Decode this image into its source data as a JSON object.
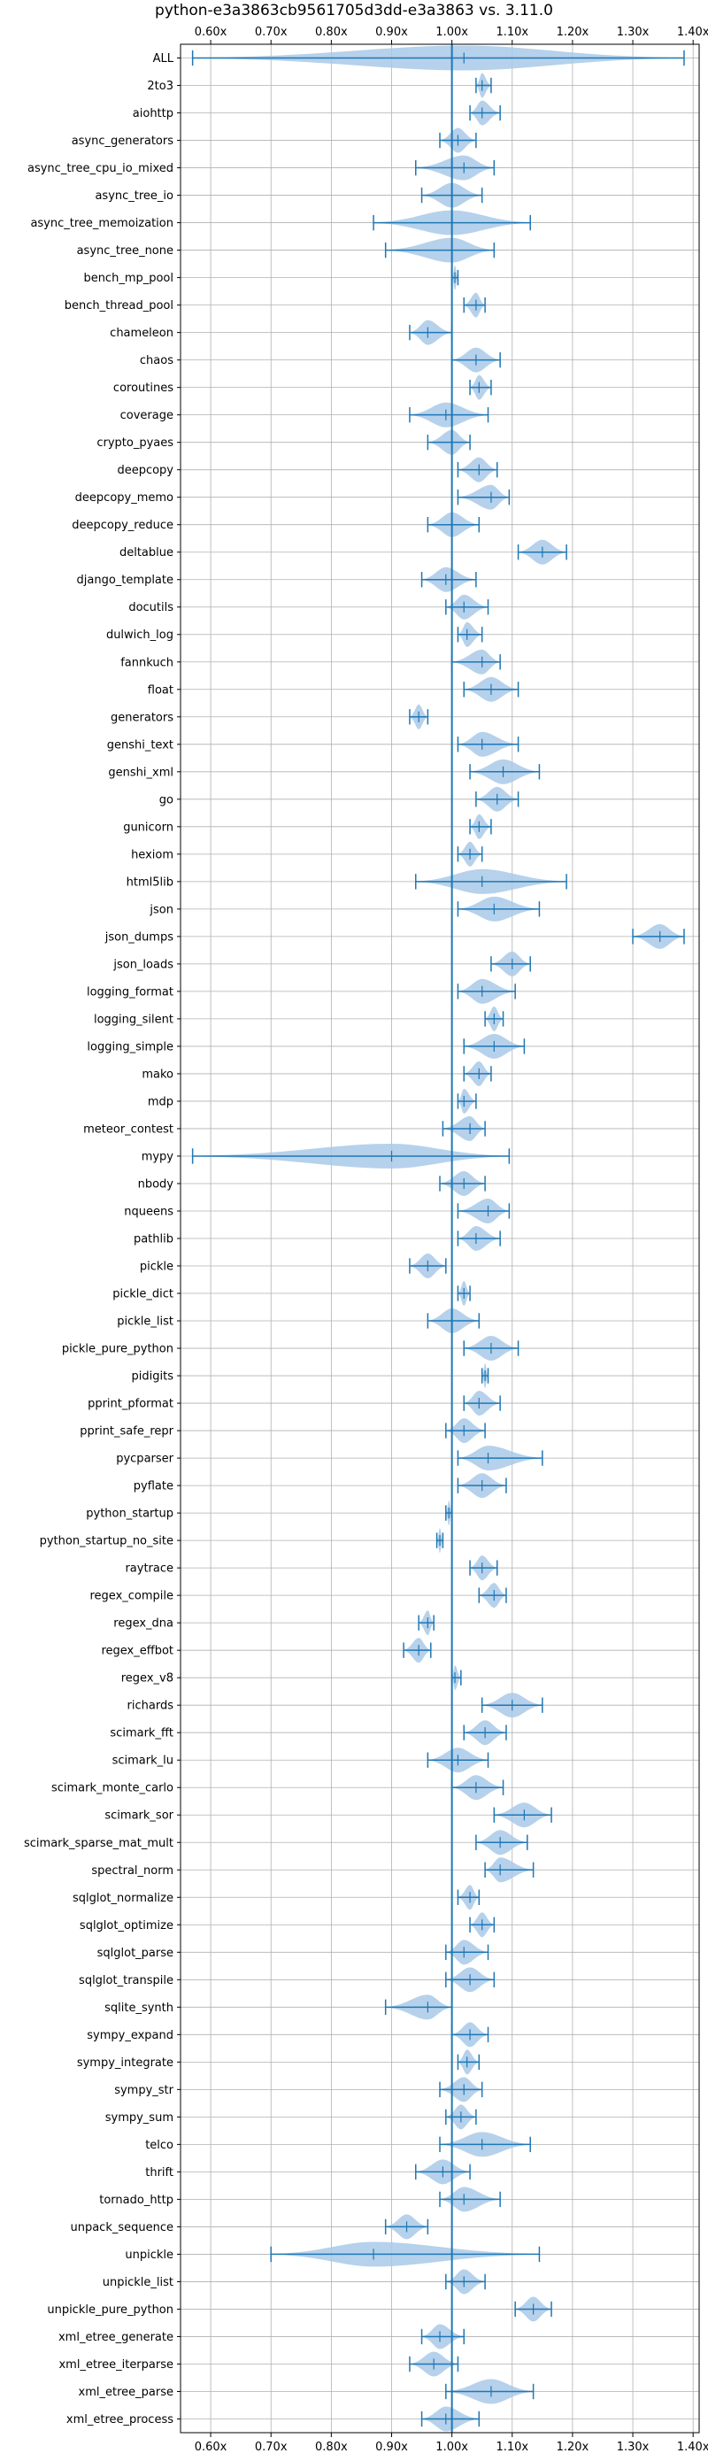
{
  "chart_data": {
    "type": "violin",
    "title": "python-e3a3863cb9561705d3dd-e3a3863 vs. 3.11.0",
    "xlim": [
      0.55,
      1.41
    ],
    "x_ticks": [
      0.6,
      0.7,
      0.8,
      0.9,
      1.0,
      1.1,
      1.2,
      1.3,
      1.4
    ],
    "x_tick_labels": [
      "0.60x",
      "0.70x",
      "0.80x",
      "0.90x",
      "1.00x",
      "1.10x",
      "1.20x",
      "1.30x",
      "1.40x"
    ],
    "x_axis_position": "top-and-bottom",
    "reference_line": 1.0,
    "grid": true,
    "benchmarks": [
      {
        "name": "ALL",
        "min": 0.57,
        "max": 1.385,
        "median": 1.02
      },
      {
        "name": "2to3",
        "min": 1.04,
        "max": 1.065,
        "median": 1.05
      },
      {
        "name": "aiohttp",
        "min": 1.03,
        "max": 1.08,
        "median": 1.05
      },
      {
        "name": "async_generators",
        "min": 0.98,
        "max": 1.04,
        "median": 1.01
      },
      {
        "name": "async_tree_cpu_io_mixed",
        "min": 0.94,
        "max": 1.07,
        "median": 1.02
      },
      {
        "name": "async_tree_io",
        "min": 0.95,
        "max": 1.05,
        "median": 1.0
      },
      {
        "name": "async_tree_memoization",
        "min": 0.87,
        "max": 1.13,
        "median": 1.0
      },
      {
        "name": "async_tree_none",
        "min": 0.89,
        "max": 1.07,
        "median": 1.0
      },
      {
        "name": "bench_mp_pool",
        "min": 1.0,
        "max": 1.01,
        "median": 1.005
      },
      {
        "name": "bench_thread_pool",
        "min": 1.02,
        "max": 1.055,
        "median": 1.04
      },
      {
        "name": "chameleon",
        "min": 0.93,
        "max": 1.0,
        "median": 0.96
      },
      {
        "name": "chaos",
        "min": 1.0,
        "max": 1.08,
        "median": 1.04
      },
      {
        "name": "coroutines",
        "min": 1.03,
        "max": 1.065,
        "median": 1.045
      },
      {
        "name": "coverage",
        "min": 0.93,
        "max": 1.06,
        "median": 0.99
      },
      {
        "name": "crypto_pyaes",
        "min": 0.96,
        "max": 1.03,
        "median": 1.0
      },
      {
        "name": "deepcopy",
        "min": 1.01,
        "max": 1.075,
        "median": 1.045
      },
      {
        "name": "deepcopy_memo",
        "min": 1.01,
        "max": 1.095,
        "median": 1.065
      },
      {
        "name": "deepcopy_reduce",
        "min": 0.96,
        "max": 1.045,
        "median": 1.0
      },
      {
        "name": "deltablue",
        "min": 1.11,
        "max": 1.19,
        "median": 1.15
      },
      {
        "name": "django_template",
        "min": 0.95,
        "max": 1.04,
        "median": 0.99
      },
      {
        "name": "docutils",
        "min": 0.99,
        "max": 1.06,
        "median": 1.02
      },
      {
        "name": "dulwich_log",
        "min": 1.01,
        "max": 1.05,
        "median": 1.025
      },
      {
        "name": "fannkuch",
        "min": 1.0,
        "max": 1.08,
        "median": 1.05
      },
      {
        "name": "float",
        "min": 1.02,
        "max": 1.11,
        "median": 1.065
      },
      {
        "name": "generators",
        "min": 0.93,
        "max": 0.96,
        "median": 0.945
      },
      {
        "name": "genshi_text",
        "min": 1.01,
        "max": 1.11,
        "median": 1.05
      },
      {
        "name": "genshi_xml",
        "min": 1.03,
        "max": 1.145,
        "median": 1.085
      },
      {
        "name": "go",
        "min": 1.04,
        "max": 1.11,
        "median": 1.075
      },
      {
        "name": "gunicorn",
        "min": 1.03,
        "max": 1.065,
        "median": 1.045
      },
      {
        "name": "hexiom",
        "min": 1.01,
        "max": 1.05,
        "median": 1.03
      },
      {
        "name": "html5lib",
        "min": 0.94,
        "max": 1.19,
        "median": 1.05
      },
      {
        "name": "json",
        "min": 1.01,
        "max": 1.145,
        "median": 1.07
      },
      {
        "name": "json_dumps",
        "min": 1.3,
        "max": 1.385,
        "median": 1.345
      },
      {
        "name": "json_loads",
        "min": 1.065,
        "max": 1.13,
        "median": 1.1
      },
      {
        "name": "logging_format",
        "min": 1.01,
        "max": 1.105,
        "median": 1.05
      },
      {
        "name": "logging_silent",
        "min": 1.055,
        "max": 1.085,
        "median": 1.07
      },
      {
        "name": "logging_simple",
        "min": 1.02,
        "max": 1.12,
        "median": 1.07
      },
      {
        "name": "mako",
        "min": 1.02,
        "max": 1.065,
        "median": 1.045
      },
      {
        "name": "mdp",
        "min": 1.01,
        "max": 1.04,
        "median": 1.02
      },
      {
        "name": "meteor_contest",
        "min": 0.985,
        "max": 1.055,
        "median": 1.03
      },
      {
        "name": "mypy",
        "min": 0.57,
        "max": 1.095,
        "median": 0.9
      },
      {
        "name": "nbody",
        "min": 0.98,
        "max": 1.055,
        "median": 1.02
      },
      {
        "name": "nqueens",
        "min": 1.01,
        "max": 1.095,
        "median": 1.06
      },
      {
        "name": "pathlib",
        "min": 1.01,
        "max": 1.08,
        "median": 1.04
      },
      {
        "name": "pickle",
        "min": 0.93,
        "max": 0.99,
        "median": 0.96
      },
      {
        "name": "pickle_dict",
        "min": 1.01,
        "max": 1.03,
        "median": 1.02
      },
      {
        "name": "pickle_list",
        "min": 0.96,
        "max": 1.045,
        "median": 1.0
      },
      {
        "name": "pickle_pure_python",
        "min": 1.02,
        "max": 1.11,
        "median": 1.065
      },
      {
        "name": "pidigits",
        "min": 1.05,
        "max": 1.06,
        "median": 1.055
      },
      {
        "name": "pprint_pformat",
        "min": 1.02,
        "max": 1.08,
        "median": 1.045
      },
      {
        "name": "pprint_safe_repr",
        "min": 0.99,
        "max": 1.055,
        "median": 1.02
      },
      {
        "name": "pycparser",
        "min": 1.01,
        "max": 1.15,
        "median": 1.06
      },
      {
        "name": "pyflate",
        "min": 1.01,
        "max": 1.09,
        "median": 1.05
      },
      {
        "name": "python_startup",
        "min": 0.99,
        "max": 1.0,
        "median": 0.995
      },
      {
        "name": "python_startup_no_site",
        "min": 0.975,
        "max": 0.985,
        "median": 0.98
      },
      {
        "name": "raytrace",
        "min": 1.03,
        "max": 1.075,
        "median": 1.05
      },
      {
        "name": "regex_compile",
        "min": 1.045,
        "max": 1.09,
        "median": 1.07
      },
      {
        "name": "regex_dna",
        "min": 0.945,
        "max": 0.97,
        "median": 0.96
      },
      {
        "name": "regex_effbot",
        "min": 0.92,
        "max": 0.965,
        "median": 0.945
      },
      {
        "name": "regex_v8",
        "min": 1.0,
        "max": 1.015,
        "median": 1.005
      },
      {
        "name": "richards",
        "min": 1.05,
        "max": 1.15,
        "median": 1.1
      },
      {
        "name": "scimark_fft",
        "min": 1.02,
        "max": 1.09,
        "median": 1.055
      },
      {
        "name": "scimark_lu",
        "min": 0.96,
        "max": 1.06,
        "median": 1.01
      },
      {
        "name": "scimark_monte_carlo",
        "min": 1.0,
        "max": 1.085,
        "median": 1.04
      },
      {
        "name": "scimark_sor",
        "min": 1.07,
        "max": 1.165,
        "median": 1.12
      },
      {
        "name": "scimark_sparse_mat_mult",
        "min": 1.04,
        "max": 1.125,
        "median": 1.08
      },
      {
        "name": "spectral_norm",
        "min": 1.055,
        "max": 1.135,
        "median": 1.08
      },
      {
        "name": "sqlglot_normalize",
        "min": 1.01,
        "max": 1.045,
        "median": 1.03
      },
      {
        "name": "sqlglot_optimize",
        "min": 1.03,
        "max": 1.07,
        "median": 1.05
      },
      {
        "name": "sqlglot_parse",
        "min": 0.99,
        "max": 1.06,
        "median": 1.02
      },
      {
        "name": "sqlglot_transpile",
        "min": 0.99,
        "max": 1.07,
        "median": 1.03
      },
      {
        "name": "sqlite_synth",
        "min": 0.89,
        "max": 1.0,
        "median": 0.96
      },
      {
        "name": "sympy_expand",
        "min": 1.0,
        "max": 1.06,
        "median": 1.03
      },
      {
        "name": "sympy_integrate",
        "min": 1.01,
        "max": 1.045,
        "median": 1.025
      },
      {
        "name": "sympy_str",
        "min": 0.98,
        "max": 1.05,
        "median": 1.02
      },
      {
        "name": "sympy_sum",
        "min": 0.99,
        "max": 1.04,
        "median": 1.015
      },
      {
        "name": "telco",
        "min": 0.98,
        "max": 1.13,
        "median": 1.05
      },
      {
        "name": "thrift",
        "min": 0.94,
        "max": 1.03,
        "median": 0.985
      },
      {
        "name": "tornado_http",
        "min": 0.98,
        "max": 1.08,
        "median": 1.02
      },
      {
        "name": "unpack_sequence",
        "min": 0.89,
        "max": 0.96,
        "median": 0.925
      },
      {
        "name": "unpickle",
        "min": 0.7,
        "max": 1.145,
        "median": 0.87
      },
      {
        "name": "unpickle_list",
        "min": 0.99,
        "max": 1.055,
        "median": 1.02
      },
      {
        "name": "unpickle_pure_python",
        "min": 1.105,
        "max": 1.165,
        "median": 1.135
      },
      {
        "name": "xml_etree_generate",
        "min": 0.95,
        "max": 1.02,
        "median": 0.98
      },
      {
        "name": "xml_etree_iterparse",
        "min": 0.93,
        "max": 1.01,
        "median": 0.97
      },
      {
        "name": "xml_etree_parse",
        "min": 0.99,
        "max": 1.135,
        "median": 1.065
      },
      {
        "name": "xml_etree_process",
        "min": 0.95,
        "max": 1.045,
        "median": 0.99
      }
    ],
    "colors": {
      "violin_fill": "#a9c9e7",
      "line": "#1f77b4",
      "grid": "#b0b0b0",
      "axes": "#000000"
    }
  }
}
